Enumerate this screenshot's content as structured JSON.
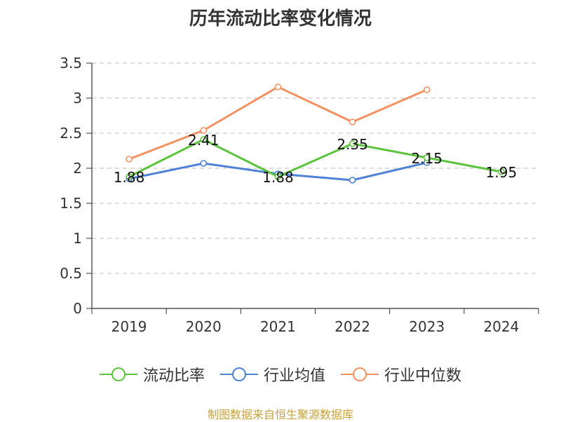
{
  "chart_data": {
    "type": "line",
    "title": "历年流动比率变化情况",
    "categories": [
      "2019",
      "2020",
      "2021",
      "2022",
      "2023",
      "2024"
    ],
    "ylim": [
      0,
      3.5
    ],
    "yticks": [
      "0",
      "0.5",
      "1",
      "1.5",
      "2",
      "2.5",
      "3",
      "3.5"
    ],
    "ytick_values": [
      0,
      0.5,
      1,
      1.5,
      2,
      2.5,
      3,
      3.5
    ],
    "grid": true,
    "legend_position": "bottom",
    "series": [
      {
        "name": "流动比率",
        "color": "#5cc43c",
        "values": [
          1.88,
          2.41,
          1.88,
          2.35,
          2.15,
          1.95
        ],
        "labels": [
          "1.88",
          "2.41",
          "1.88",
          "2.35",
          "2.15",
          "1.95"
        ]
      },
      {
        "name": "行业均值",
        "color": "#4f81d6",
        "values": [
          1.85,
          2.07,
          1.92,
          1.83,
          2.08,
          null
        ]
      },
      {
        "name": "行业中位数",
        "color": "#f59262",
        "values": [
          2.13,
          2.54,
          3.16,
          2.66,
          3.12,
          null
        ]
      }
    ]
  },
  "source": "制图数据来自恒生聚源数据库"
}
